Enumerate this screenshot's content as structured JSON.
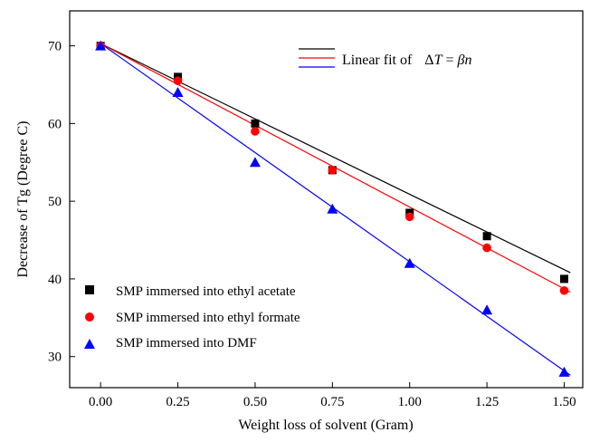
{
  "chart_data": {
    "type": "scatter",
    "xlabel": "Weight loss of solvent (Gram)",
    "ylabel": "Decrease of Tg (Degree C)",
    "xlim": [
      -0.1,
      1.56
    ],
    "ylim": [
      26,
      74.5
    ],
    "x_ticks": [
      0.0,
      0.25,
      0.5,
      0.75,
      1.0,
      1.25,
      1.5
    ],
    "x_tick_labels": [
      "0.00",
      "0.25",
      "0.50",
      "0.75",
      "1.00",
      "1.25",
      "1.50"
    ],
    "y_ticks": [
      30,
      40,
      50,
      60,
      70
    ],
    "y_tick_labels": [
      "30",
      "40",
      "50",
      "60",
      "70"
    ],
    "grid": false,
    "legend_placement": "bottom-left",
    "fit_legend": {
      "prefix": "Linear fit of",
      "delta": "Δ",
      "var_t": "T",
      "equals": " = ",
      "beta": "β",
      "var_n": "n",
      "line_colors": [
        "#000000",
        "#ff0000",
        "#0000ff"
      ]
    },
    "x": [
      0.0,
      0.25,
      0.5,
      0.75,
      1.0,
      1.25,
      1.5
    ],
    "series": [
      {
        "name": "SMP immersed into ethyl acetate",
        "marker": "square",
        "color": "#000000",
        "values": [
          70.0,
          66.0,
          60.0,
          54.0,
          48.5,
          45.5,
          40.0
        ],
        "fit": {
          "x": [
            0.0,
            1.52
          ],
          "y": [
            70.3,
            40.8
          ]
        }
      },
      {
        "name": "SMP immersed into ethyl formate",
        "marker": "circle",
        "color": "#ff0000",
        "values": [
          70.0,
          65.5,
          59.0,
          54.0,
          48.0,
          44.0,
          38.5
        ],
        "fit": {
          "x": [
            0.0,
            1.52
          ],
          "y": [
            70.3,
            38.3
          ]
        }
      },
      {
        "name": "SMP immersed into DMF",
        "marker": "triangle",
        "color": "#0000ff",
        "values": [
          70.0,
          64.0,
          55.0,
          49.0,
          42.0,
          36.0,
          28.0
        ],
        "fit": {
          "x": [
            0.0,
            1.52
          ],
          "y": [
            70.3,
            27.6
          ]
        }
      }
    ]
  }
}
